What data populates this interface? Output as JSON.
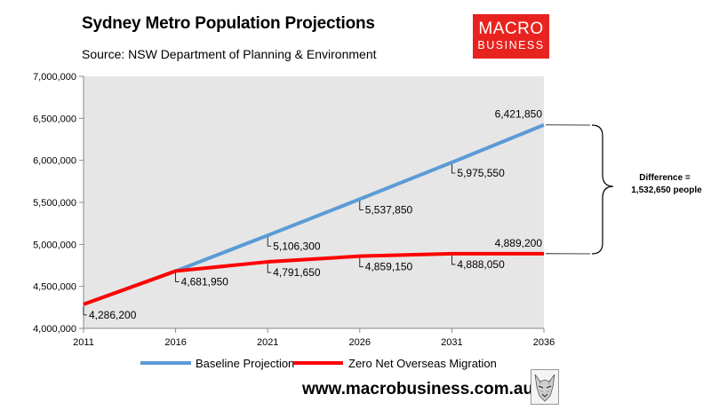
{
  "header": {
    "title": "Sydney Metro Population Projections",
    "subtitle": "Source: NSW Department of Planning & Environment"
  },
  "logo": {
    "line1": "MACRO",
    "line2": "BUSINESS"
  },
  "footer": {
    "website": "www.macrobusiness.com.au"
  },
  "colors": {
    "baseline": "#5b9bd5",
    "zero_nom": "#ff0000",
    "plot_bg": "#e6e6e6",
    "logo_bg": "#e8231f"
  },
  "chart_data": {
    "type": "line",
    "title": "Sydney Metro Population Projections",
    "x": [
      "2011",
      "2016",
      "2021",
      "2026",
      "2031",
      "2036"
    ],
    "ylim": [
      4000000,
      7000000
    ],
    "yticks": [
      4000000,
      4500000,
      5000000,
      5500000,
      6000000,
      6500000,
      7000000
    ],
    "ytick_labels": [
      "4,000,000",
      "4,500,000",
      "5,000,000",
      "5,500,000",
      "6,000,000",
      "6,500,000",
      "7,000,000"
    ],
    "series": [
      {
        "name": "Baseline Projection",
        "values": [
          4286200,
          4681950,
          5106300,
          5537850,
          5975550,
          6421850
        ],
        "labels": [
          null,
          null,
          "5,106,300",
          "5,537,850",
          "5,975,550",
          "6,421,850"
        ]
      },
      {
        "name": "Zero Net Overseas Migration",
        "values": [
          4286200,
          4681950,
          4791650,
          4859150,
          4888050,
          4889200
        ],
        "labels": [
          "4,286,200",
          "4,681,950",
          "4,791,650",
          "4,859,150",
          "4,888,050",
          "4,889,200"
        ]
      }
    ],
    "annotation": {
      "line1": "Difference =",
      "line2": "1,532,650 people"
    },
    "legend_position": "bottom"
  }
}
